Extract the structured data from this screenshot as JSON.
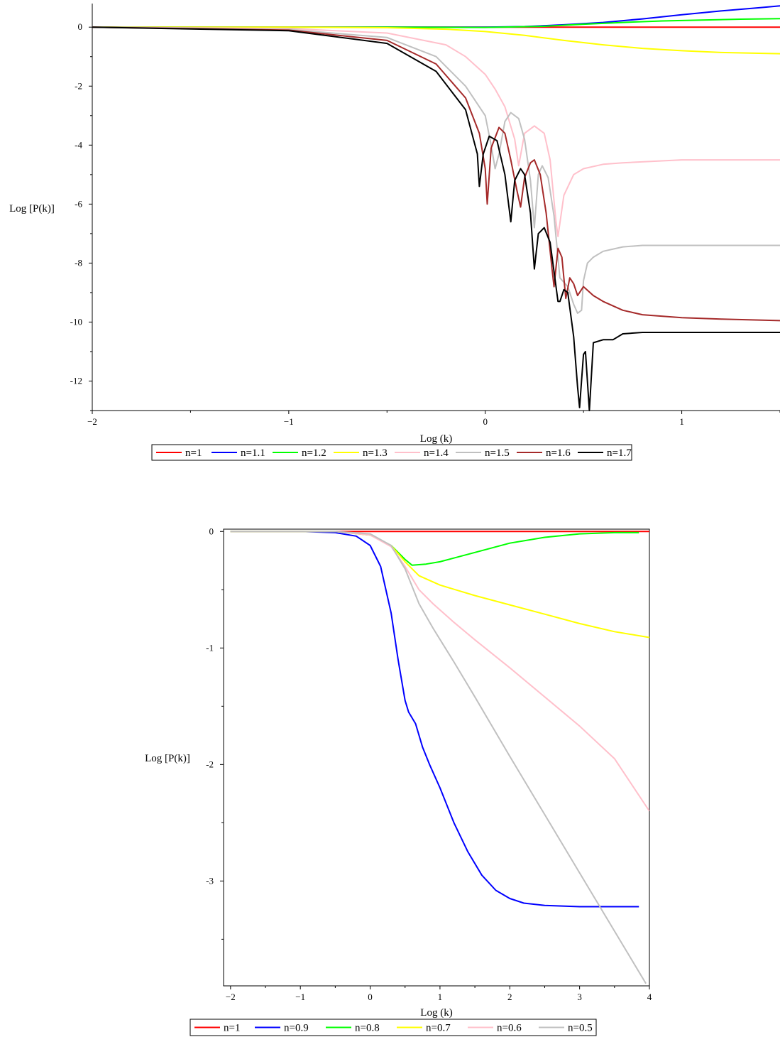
{
  "chart_data": [
    {
      "type": "line",
      "xlabel": "Log (k)",
      "ylabel": "Log [P(k)]",
      "xlim": [
        -2,
        1.5
      ],
      "ylim": [
        -13,
        0.8
      ],
      "xticks": [
        -2,
        -1,
        0,
        1
      ],
      "yticks": [
        0,
        -2,
        -4,
        -6,
        -8,
        -10,
        -12
      ],
      "legend_position": "bottom",
      "series": [
        {
          "name": "n=1",
          "color": "#ff0000",
          "x": [
            -2,
            1.5
          ],
          "y": [
            0,
            0
          ]
        },
        {
          "name": "n=1.1",
          "color": "#0000ff",
          "x": [
            -2,
            -0.5,
            0,
            0.2,
            0.4,
            0.6,
            0.8,
            1.0,
            1.2,
            1.4,
            1.5
          ],
          "y": [
            0,
            0,
            0,
            0.02,
            0.08,
            0.16,
            0.28,
            0.42,
            0.55,
            0.66,
            0.72
          ]
        },
        {
          "name": "n=1.2",
          "color": "#00ff00",
          "x": [
            -2,
            -0.5,
            0,
            0.3,
            0.5,
            0.7,
            0.9,
            1.1,
            1.3,
            1.5
          ],
          "y": [
            0,
            0,
            -0.01,
            0.03,
            0.1,
            0.16,
            0.21,
            0.24,
            0.27,
            0.29
          ]
        },
        {
          "name": "n=1.3",
          "color": "#ffff00",
          "x": [
            -2,
            -1,
            -0.5,
            -0.2,
            0,
            0.2,
            0.4,
            0.6,
            0.8,
            1.0,
            1.2,
            1.5
          ],
          "y": [
            0,
            0,
            -0.02,
            -0.07,
            -0.15,
            -0.28,
            -0.45,
            -0.6,
            -0.72,
            -0.8,
            -0.86,
            -0.9
          ]
        },
        {
          "name": "n=1.4",
          "color": "#ffc0cb",
          "x": [
            -2,
            -1,
            -0.5,
            -0.2,
            -0.1,
            0,
            0.05,
            0.1,
            0.15,
            0.17,
            0.2,
            0.25,
            0.3,
            0.33,
            0.36,
            0.37,
            0.4,
            0.45,
            0.5,
            0.6,
            0.7,
            1.0,
            1.5
          ],
          "y": [
            0,
            -0.05,
            -0.2,
            -0.6,
            -1,
            -1.6,
            -2.1,
            -2.7,
            -3.8,
            -4.7,
            -3.6,
            -3.35,
            -3.6,
            -4.5,
            -6.6,
            -7.1,
            -5.7,
            -5.0,
            -4.8,
            -4.65,
            -4.6,
            -4.5,
            -4.5
          ]
        },
        {
          "name": "n=1.5",
          "color": "#c0c0c0",
          "x": [
            -2,
            -1,
            -0.5,
            -0.25,
            -0.1,
            0,
            0.03,
            0.05,
            0.07,
            0.1,
            0.13,
            0.17,
            0.2,
            0.23,
            0.25,
            0.27,
            0.29,
            0.32,
            0.35,
            0.38,
            0.42,
            0.45,
            0.47,
            0.49,
            0.5,
            0.52,
            0.55,
            0.6,
            0.7,
            0.8,
            1.0,
            1.5
          ],
          "y": [
            0,
            -0.08,
            -0.35,
            -1.0,
            -2.0,
            -3.0,
            -4.0,
            -4.8,
            -4.3,
            -3.2,
            -2.9,
            -3.1,
            -3.8,
            -5.2,
            -6.8,
            -5.0,
            -4.7,
            -5.1,
            -6.4,
            -8.5,
            -8.8,
            -9.4,
            -9.7,
            -9.6,
            -8.6,
            -8.0,
            -7.8,
            -7.6,
            -7.45,
            -7.4,
            -7.4,
            -7.4
          ]
        },
        {
          "name": "n=1.6",
          "color": "#a52a2a",
          "x": [
            -2,
            -1,
            -0.5,
            -0.25,
            -0.1,
            -0.03,
            0,
            0.01,
            0.03,
            0.07,
            0.1,
            0.13,
            0.16,
            0.18,
            0.2,
            0.23,
            0.25,
            0.28,
            0.31,
            0.34,
            0.35,
            0.37,
            0.39,
            0.41,
            0.43,
            0.45,
            0.47,
            0.5,
            0.55,
            0.6,
            0.7,
            0.8,
            1.0,
            1.2,
            1.5
          ],
          "y": [
            0,
            -0.1,
            -0.45,
            -1.25,
            -2.4,
            -3.6,
            -4.8,
            -6.0,
            -4.1,
            -3.4,
            -3.6,
            -4.5,
            -5.5,
            -6.1,
            -5.1,
            -4.6,
            -4.5,
            -5.0,
            -6.3,
            -8.2,
            -8.8,
            -7.5,
            -7.8,
            -9.2,
            -8.5,
            -8.7,
            -9.1,
            -8.8,
            -9.1,
            -9.3,
            -9.6,
            -9.75,
            -9.85,
            -9.9,
            -9.95
          ]
        },
        {
          "name": "n=1.7",
          "color": "#000000",
          "x": [
            -2,
            -1,
            -0.5,
            -0.25,
            -0.1,
            -0.04,
            -0.03,
            -0.01,
            0.02,
            0.06,
            0.1,
            0.13,
            0.15,
            0.18,
            0.2,
            0.23,
            0.25,
            0.27,
            0.3,
            0.33,
            0.37,
            0.38,
            0.4,
            0.42,
            0.45,
            0.47,
            0.48,
            0.5,
            0.51,
            0.53,
            0.55,
            0.6,
            0.65,
            0.7,
            0.8,
            1.0,
            1.5
          ],
          "y": [
            0,
            -0.12,
            -0.55,
            -1.5,
            -2.8,
            -4.3,
            -5.4,
            -4.3,
            -3.7,
            -3.85,
            -5.0,
            -6.6,
            -5.2,
            -4.8,
            -5.0,
            -6.3,
            -8.2,
            -7.0,
            -6.8,
            -7.3,
            -9.3,
            -9.3,
            -8.9,
            -9.0,
            -10.5,
            -12.2,
            -12.9,
            -11.1,
            -11.0,
            -13.0,
            -10.7,
            -10.6,
            -10.6,
            -10.4,
            -10.35,
            -10.35,
            -10.35
          ]
        }
      ]
    },
    {
      "type": "line",
      "xlabel": "Log (k)",
      "ylabel": "Log [P(k)]",
      "xlim": [
        -2.1,
        4
      ],
      "ylim": [
        -3.9,
        0.02
      ],
      "xticks": [
        -2,
        -1,
        0,
        1,
        2,
        3,
        4
      ],
      "yticks": [
        0,
        -1,
        -2,
        -3
      ],
      "legend_position": "bottom",
      "series": [
        {
          "name": "n=1",
          "color": "#ff0000",
          "x": [
            -2,
            4
          ],
          "y": [
            0,
            0
          ]
        },
        {
          "name": "n=0.9",
          "color": "#0000ff",
          "x": [
            -2,
            -1,
            -0.5,
            -0.2,
            0,
            0.15,
            0.3,
            0.4,
            0.5,
            0.55,
            0.65,
            0.75,
            0.85,
            1.0,
            1.2,
            1.4,
            1.6,
            1.8,
            2.0,
            2.2,
            2.5,
            3.0,
            3.5,
            3.85
          ],
          "y": [
            0,
            0,
            -0.01,
            -0.04,
            -0.12,
            -0.3,
            -0.7,
            -1.1,
            -1.45,
            -1.55,
            -1.65,
            -1.85,
            -2.0,
            -2.2,
            -2.5,
            -2.75,
            -2.95,
            -3.08,
            -3.15,
            -3.19,
            -3.21,
            -3.22,
            -3.22,
            -3.22
          ]
        },
        {
          "name": "n=0.8",
          "color": "#00ff00",
          "x": [
            -2,
            -0.5,
            0,
            0.3,
            0.5,
            0.6,
            0.8,
            1.0,
            1.5,
            2.0,
            2.5,
            3.0,
            3.5,
            3.85
          ],
          "y": [
            0,
            0,
            -0.03,
            -0.12,
            -0.24,
            -0.29,
            -0.28,
            -0.26,
            -0.18,
            -0.1,
            -0.05,
            -0.02,
            -0.01,
            -0.01
          ]
        },
        {
          "name": "n=0.7",
          "color": "#ffff00",
          "x": [
            -2,
            -0.5,
            0,
            0.3,
            0.5,
            0.7,
            1.0,
            1.5,
            2.0,
            2.5,
            3.0,
            3.5,
            4.0
          ],
          "y": [
            0,
            0,
            -0.03,
            -0.12,
            -0.26,
            -0.38,
            -0.46,
            -0.55,
            -0.63,
            -0.71,
            -0.79,
            -0.86,
            -0.91
          ]
        },
        {
          "name": "n=0.6",
          "color": "#ffc0cb",
          "x": [
            -2,
            -0.5,
            0,
            0.3,
            0.5,
            0.7,
            0.9,
            1.2,
            1.5,
            2.0,
            2.5,
            3.0,
            3.5,
            4.0
          ],
          "y": [
            0,
            0,
            -0.03,
            -0.13,
            -0.3,
            -0.5,
            -0.62,
            -0.78,
            -0.93,
            -1.17,
            -1.42,
            -1.67,
            -1.95,
            -2.4
          ]
        },
        {
          "name": "n=0.5",
          "color": "#c0c0c0",
          "x": [
            -2,
            -0.5,
            0,
            0.3,
            0.5,
            0.7,
            0.9,
            1.2,
            1.5,
            2.0,
            2.5,
            3.0,
            3.5,
            3.95
          ],
          "y": [
            0,
            0,
            -0.02,
            -0.12,
            -0.32,
            -0.62,
            -0.83,
            -1.12,
            -1.42,
            -1.93,
            -2.43,
            -2.93,
            -3.43,
            -3.88
          ]
        }
      ]
    }
  ]
}
